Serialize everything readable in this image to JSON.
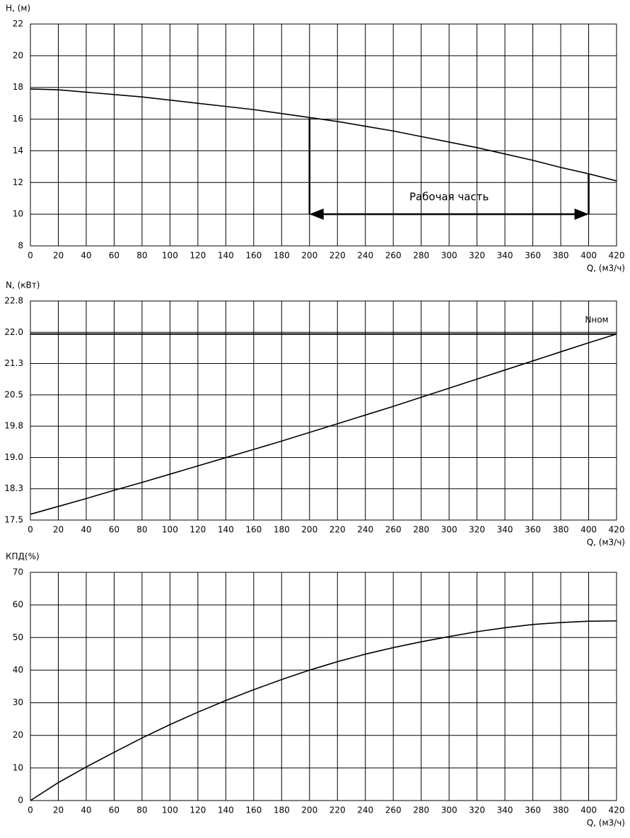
{
  "chart_data": [
    {
      "type": "line",
      "y_label": "H, (м)",
      "x_label": "Q, (м3/ч)",
      "x": [
        0,
        20,
        40,
        60,
        80,
        100,
        120,
        140,
        160,
        180,
        200,
        220,
        240,
        260,
        280,
        300,
        320,
        340,
        360,
        380,
        400,
        420
      ],
      "xlim": [
        0,
        420
      ],
      "xticks": [
        0,
        20,
        40,
        60,
        80,
        100,
        120,
        140,
        160,
        180,
        200,
        220,
        240,
        260,
        280,
        300,
        320,
        340,
        360,
        380,
        400,
        420
      ],
      "ylim": [
        8,
        22
      ],
      "yticks": [
        8,
        10,
        12,
        14,
        16,
        18,
        20,
        22
      ],
      "grid": true,
      "series": [
        {
          "color": "#000000",
          "values": [
            17.9,
            17.85,
            17.7,
            17.55,
            17.4,
            17.2,
            17.0,
            16.8,
            16.6,
            16.35,
            16.1,
            15.85,
            15.55,
            15.25,
            14.9,
            14.55,
            14.2,
            13.8,
            13.4,
            12.95,
            12.55,
            12.1
          ]
        }
      ],
      "annotation": {
        "text": "Рабочая часть",
        "x": [
          200,
          400
        ],
        "y": 10,
        "tops": [
          16.1,
          12.55
        ]
      }
    },
    {
      "type": "line",
      "y_label": "N, (кВт)",
      "x_label": "Q, (м3/ч)",
      "x": [
        0,
        20,
        40,
        60,
        80,
        100,
        120,
        140,
        160,
        180,
        200,
        220,
        240,
        260,
        280,
        300,
        320,
        340,
        360,
        380,
        400,
        420
      ],
      "xlim": [
        0,
        420
      ],
      "xticks": [
        0,
        20,
        40,
        60,
        80,
        100,
        120,
        140,
        160,
        180,
        200,
        220,
        240,
        260,
        280,
        300,
        320,
        340,
        360,
        380,
        400,
        420
      ],
      "ylim": [
        17.5,
        22.8
      ],
      "yticks": [
        {
          "value": 17.5,
          "label": "17.5"
        },
        {
          "value": 18.257,
          "label": "18.3"
        },
        {
          "value": 19.014,
          "label": "19.0"
        },
        {
          "value": 19.771,
          "label": "19.8"
        },
        {
          "value": 20.529,
          "label": "20.5"
        },
        {
          "value": 21.286,
          "label": "21.3"
        },
        {
          "value": 22.043,
          "label": "22.0"
        },
        {
          "value": 22.8,
          "label": "22.8"
        }
      ],
      "grid": true,
      "series": [
        {
          "color": "#000000",
          "values": [
            17.64,
            17.83,
            18.02,
            18.22,
            18.41,
            18.61,
            18.81,
            19.01,
            19.21,
            19.41,
            19.62,
            19.83,
            20.04,
            20.25,
            20.47,
            20.69,
            20.91,
            21.13,
            21.35,
            21.57,
            21.79,
            22.0
          ]
        }
      ],
      "hline": {
        "label": "Nном",
        "value": 22.0
      }
    },
    {
      "type": "line",
      "y_label": "КПД(%)",
      "x_label": "Q, (м3/ч)",
      "x": [
        0,
        20,
        40,
        60,
        80,
        100,
        120,
        140,
        160,
        180,
        200,
        220,
        240,
        260,
        280,
        300,
        320,
        340,
        360,
        380,
        400,
        420
      ],
      "xlim": [
        0,
        420
      ],
      "xticks": [
        0,
        20,
        40,
        60,
        80,
        100,
        120,
        140,
        160,
        180,
        200,
        220,
        240,
        260,
        280,
        300,
        320,
        340,
        360,
        380,
        400,
        420
      ],
      "ylim": [
        0,
        70
      ],
      "yticks": [
        0,
        10,
        20,
        30,
        40,
        50,
        60,
        70
      ],
      "grid": true,
      "series": [
        {
          "color": "#000000",
          "values": [
            0,
            5.5,
            10.3,
            14.8,
            19.2,
            23.3,
            27.1,
            30.7,
            34.0,
            37.1,
            40.0,
            42.6,
            44.9,
            46.9,
            48.7,
            50.3,
            51.8,
            53.0,
            54.0,
            54.6,
            55.0,
            55.1
          ]
        }
      ]
    }
  ]
}
